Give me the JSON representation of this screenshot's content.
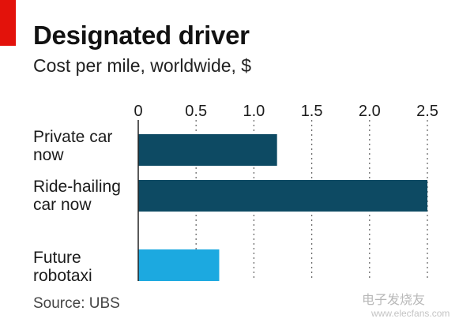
{
  "chart_data": {
    "type": "bar",
    "orientation": "horizontal",
    "title": "Designated driver",
    "subtitle": "Cost per mile, worldwide, $",
    "categories": [
      [
        "Private car",
        "now"
      ],
      [
        "Ride-hailing",
        "car now"
      ],
      [
        "Future",
        "robotaxi"
      ]
    ],
    "values": [
      1.2,
      2.5,
      0.7
    ],
    "bar_colors": [
      "#0d4a63",
      "#0d4a63",
      "#1ca9e0"
    ],
    "xlim": [
      0,
      2.5
    ],
    "ticks": [
      0,
      0.5,
      1.0,
      1.5,
      2.0,
      2.5
    ],
    "tick_labels": [
      "0",
      "0.5",
      "1.0",
      "1.5",
      "2.0",
      "2.5"
    ],
    "grid": "dotted-vertical",
    "source": "Source: UBS"
  },
  "brand": {
    "accent": "#e3120b",
    "watermark": "电子发烧友",
    "watermark_sub": "www.elecfans.com"
  }
}
